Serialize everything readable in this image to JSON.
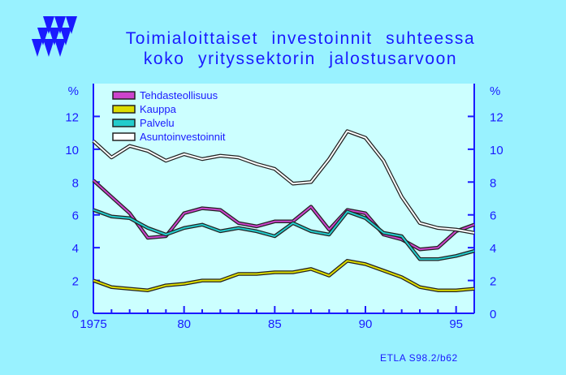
{
  "title_lines": [
    "Toimialoittaiset  investoinnit  suhteessa",
    "koko  yrityssektorin  jalostusarvoon"
  ],
  "source": "ETLA S98.2/b62",
  "colors": {
    "background": "#99f2ff",
    "plot_area": "#ccffff",
    "axis": "#1a1aff",
    "text": "#1a1aff",
    "logo": "#1a1aff"
  },
  "chart_data": {
    "type": "line",
    "title": "Toimialoittaiset investoinnit suhteessa koko yrityssektorin jalostusarvoon",
    "xlabel": "",
    "ylabel": "%",
    "ylabel_right": "%",
    "xlim": [
      1975,
      1996
    ],
    "ylim": [
      0,
      14
    ],
    "x_ticks": [
      1975,
      1980,
      1985,
      1990,
      1995
    ],
    "x_tick_labels": [
      "1975",
      "80",
      "85",
      "90",
      "95"
    ],
    "y_ticks": [
      0,
      2,
      4,
      6,
      8,
      10,
      12
    ],
    "y_tick_labels": [
      "0",
      "2",
      "4",
      "6",
      "8",
      "10",
      "12"
    ],
    "grid": false,
    "legend_position": "top-left",
    "x": [
      1975,
      1976,
      1977,
      1978,
      1979,
      1980,
      1981,
      1982,
      1983,
      1984,
      1985,
      1986,
      1987,
      1988,
      1989,
      1990,
      1991,
      1992,
      1993,
      1994,
      1995,
      1996
    ],
    "series": [
      {
        "name": "Tehdasteollisuus",
        "color": "#cc44cc",
        "values": [
          8.1,
          7.1,
          6.1,
          4.6,
          4.7,
          6.1,
          6.4,
          6.3,
          5.5,
          5.3,
          5.6,
          5.6,
          6.5,
          5.1,
          6.3,
          6.1,
          4.8,
          4.5,
          3.9,
          4.0,
          5.0,
          5.4
        ]
      },
      {
        "name": "Kauppa",
        "color": "#dddd00",
        "values": [
          2.0,
          1.6,
          1.5,
          1.4,
          1.7,
          1.8,
          2.0,
          2.0,
          2.4,
          2.4,
          2.5,
          2.5,
          2.7,
          2.3,
          3.2,
          3.0,
          2.6,
          2.2,
          1.6,
          1.4,
          1.4,
          1.5
        ]
      },
      {
        "name": "Palvelu",
        "color": "#22cccc",
        "values": [
          6.3,
          5.9,
          5.8,
          5.2,
          4.8,
          5.2,
          5.4,
          5.0,
          5.2,
          5.0,
          4.7,
          5.5,
          5.0,
          4.8,
          6.2,
          5.8,
          4.9,
          4.7,
          3.3,
          3.3,
          3.5,
          3.8
        ]
      },
      {
        "name": "Asuntoinvestoinnit",
        "color": "#ffffff",
        "values": [
          10.5,
          9.5,
          10.2,
          9.9,
          9.3,
          9.7,
          9.4,
          9.6,
          9.5,
          9.1,
          8.8,
          7.9,
          8.0,
          9.4,
          11.1,
          10.7,
          9.3,
          7.1,
          5.5,
          5.2,
          5.1,
          4.9
        ]
      }
    ]
  }
}
